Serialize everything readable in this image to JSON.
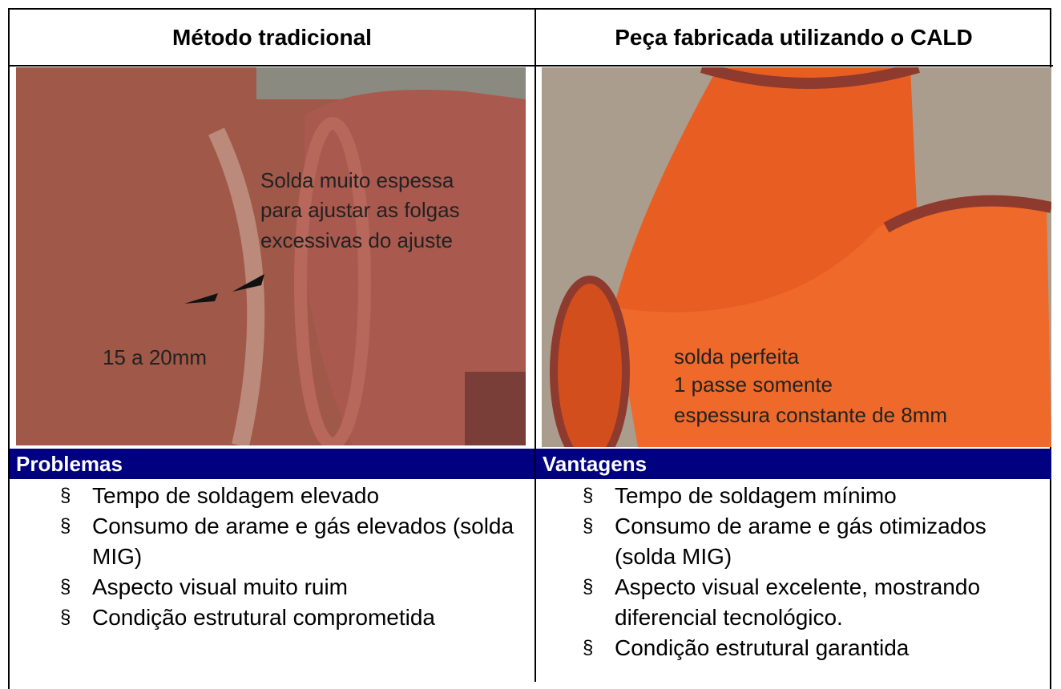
{
  "table": {
    "headers": [
      "Método tradicional",
      "Peça fabricada utilizando o CALD"
    ],
    "bullet": "§",
    "columns": [
      {
        "image_captions": [
          "Solda muito espessa",
          "para ajustar as folgas",
          "excessivas do ajuste",
          "15 a 20mm"
        ],
        "section_title": "Problemas",
        "items": [
          "Tempo de soldagem elevado",
          "Consumo de arame e gás elevados (solda MIG)",
          "Aspecto visual muito ruim",
          "Condição estrutural comprometida"
        ]
      },
      {
        "image_captions": [
          "solda perfeita",
          "1 passe somente",
          "espessura constante de 8mm"
        ],
        "section_title": "Vantagens",
        "items": [
          "Tempo de soldagem mínimo",
          "Consumo de arame e gás otimizados (solda MIG)",
          "Aspecto visual excelente, mostrando diferencial tecnológico.",
          "Condição estrutural garantida"
        ]
      }
    ]
  }
}
